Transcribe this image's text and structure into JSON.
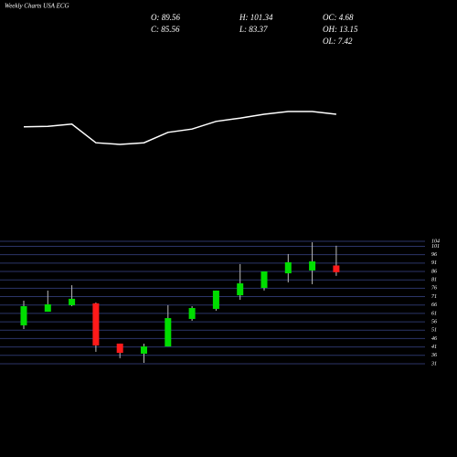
{
  "chart_data": {
    "type": "candlestick",
    "title": "Weekly Charts USA ECG",
    "info": [
      "O: 89.56",
      "H: 101.34",
      "OC: 4.68",
      "C: 85.56",
      "L: 83.37",
      "OH: 13.15",
      "OL: 7.42"
    ],
    "categories": [
      null,
      null,
      null,
      null,
      null,
      null,
      null,
      null,
      null,
      null,
      null,
      null,
      null,
      null
    ],
    "open": [
      53.9,
      62,
      65.9,
      67,
      43,
      37,
      41.3,
      57.7,
      63.7,
      71.8,
      76.2,
      84.9,
      86.6,
      89.56
    ],
    "high": [
      68.6,
      74.6,
      77.8,
      67.5,
      43,
      43,
      65.9,
      65.3,
      74.6,
      90.4,
      86,
      96.4,
      103.4,
      101.34
    ],
    "low": [
      51.7,
      62,
      65.3,
      38.1,
      34.3,
      31.5,
      41.3,
      56.6,
      62.6,
      69.1,
      74.6,
      79.5,
      78.4,
      83.37
    ],
    "close": [
      65.3,
      66.4,
      69.7,
      41.9,
      37.5,
      41.3,
      58.2,
      64.2,
      74.6,
      78.9,
      86,
      91.5,
      92,
      85.56
    ],
    "up_color": "#00dd00",
    "down_color": "#ff1a1a",
    "ylim": [
      30,
      106
    ],
    "yticks": [
      31,
      36,
      41,
      46,
      51,
      56,
      61,
      66,
      71,
      76,
      81,
      86,
      91,
      96,
      101,
      104
    ],
    "grid": true,
    "line": {
      "color": "#ffffff",
      "values": [
        52,
        53,
        57,
        23,
        20,
        23,
        42,
        48,
        62,
        68,
        75,
        80,
        80,
        75
      ],
      "ylim": [
        0,
        100
      ]
    }
  }
}
